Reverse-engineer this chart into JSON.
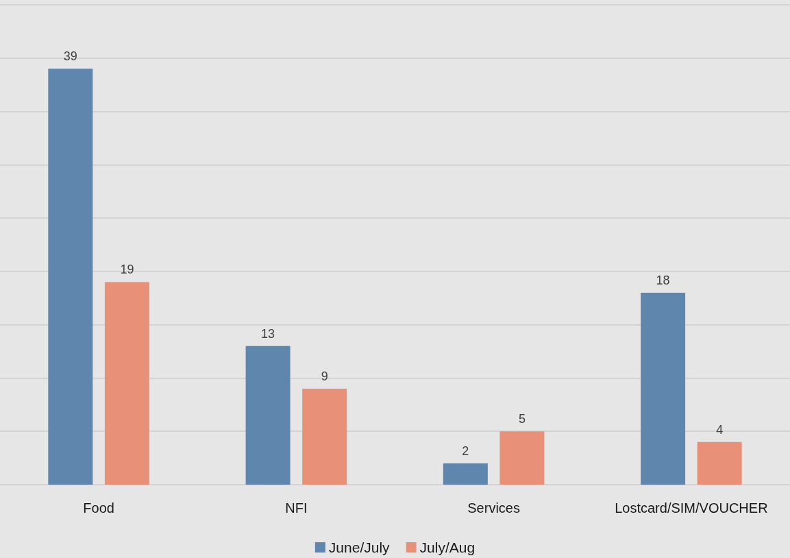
{
  "chart_data": {
    "type": "bar",
    "categories": [
      "Food",
      "NFI",
      "Services",
      "Lostcard/SIM/VOUCHER"
    ],
    "series": [
      {
        "name": "June/July",
        "color": "#5f86ad",
        "values": [
          39,
          13,
          2,
          18
        ]
      },
      {
        "name": "July/Aug",
        "color": "#e89178",
        "values": [
          19,
          9,
          5,
          4
        ]
      }
    ],
    "ylim": [
      0,
      45
    ],
    "yticks": [
      {
        "value": 0,
        "label": null
      },
      {
        "value": 5,
        "label": null
      },
      {
        "value": 10,
        "label": null
      },
      {
        "value": 15,
        "label": null
      },
      {
        "value": 20,
        "label": null
      },
      {
        "value": 25,
        "label": null
      },
      {
        "value": 30,
        "label": null
      },
      {
        "value": 35,
        "label": null
      },
      {
        "value": 40,
        "label": null
      },
      {
        "value": 45,
        "label": null
      }
    ],
    "tick_labels": "x",
    "grid": "y",
    "legend": "bottom",
    "data_labels": true
  }
}
